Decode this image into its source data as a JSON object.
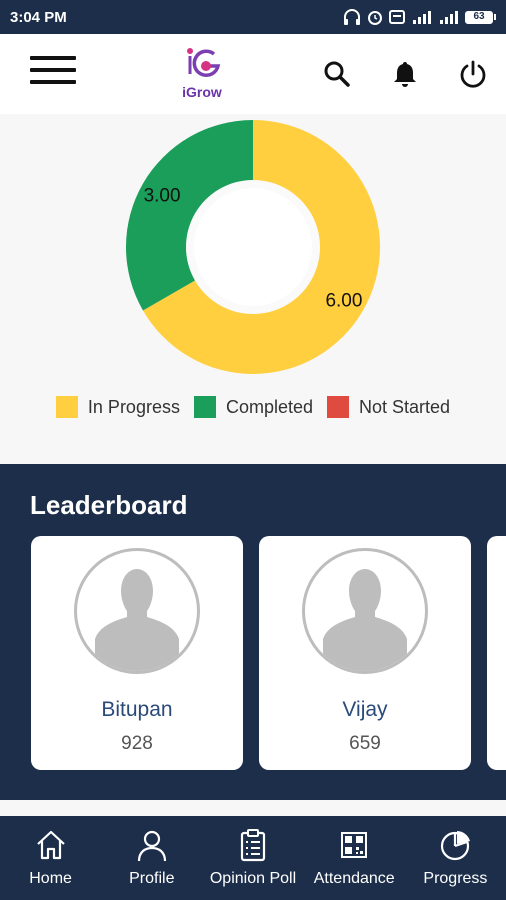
{
  "status_bar": {
    "time": "3:04 PM",
    "battery": "63"
  },
  "app_bar": {
    "logo_text": "iGrow"
  },
  "chart_data": {
    "type": "pie",
    "style": "donut",
    "slices": [
      {
        "label": "In Progress",
        "value": 6.0,
        "display": "6.00",
        "color": "#ffcf40"
      },
      {
        "label": "Completed",
        "value": 3.0,
        "display": "3.00",
        "color": "#1a9e5a"
      },
      {
        "label": "Not Started",
        "value": 0,
        "color": "#e04b3f"
      }
    ],
    "legend": [
      "In Progress",
      "Completed",
      "Not Started"
    ],
    "legend_position": "bottom"
  },
  "leaderboard": {
    "title": "Leaderboard",
    "entries": [
      {
        "name": "Bitupan",
        "score": "928"
      },
      {
        "name": "Vijay",
        "score": "659"
      }
    ]
  },
  "bottom_nav": {
    "items": [
      {
        "label": "Home",
        "icon": "home-icon"
      },
      {
        "label": "Profile",
        "icon": "person-icon"
      },
      {
        "label": "Opinion Poll",
        "icon": "clipboard-icon"
      },
      {
        "label": "Attendance",
        "icon": "qr-code-icon"
      },
      {
        "label": "Progress",
        "icon": "pie-chart-icon"
      }
    ]
  }
}
